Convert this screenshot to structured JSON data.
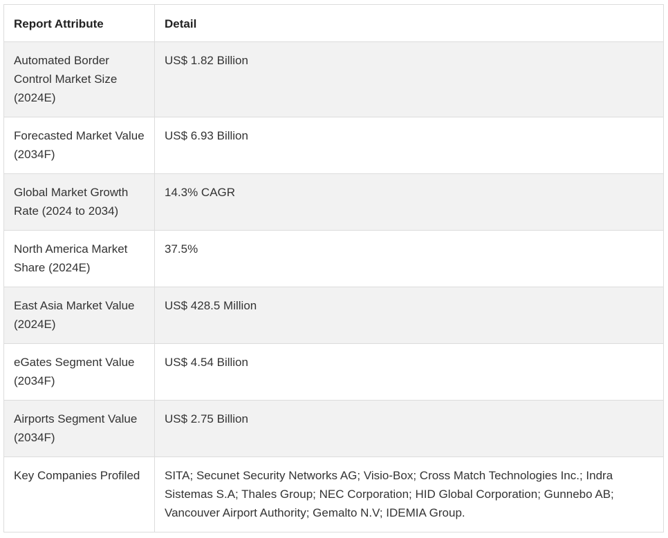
{
  "table": {
    "headers": [
      "Report Attribute",
      "Detail"
    ],
    "rows": [
      {
        "attribute": "Automated Border Control Market Size (2024E)",
        "detail": "US$ 1.82 Billion"
      },
      {
        "attribute": "Forecasted Market Value (2034F)",
        "detail": "US$ 6.93 Billion"
      },
      {
        "attribute": "Global Market Growth Rate (2024 to 2034)",
        "detail": "14.3% CAGR"
      },
      {
        "attribute": "North America Market Share (2024E)",
        "detail": "37.5%"
      },
      {
        "attribute": "East Asia Market Value (2024E)",
        "detail": "US$ 428.5 Million"
      },
      {
        "attribute": "eGates Segment Value (2034F)",
        "detail": "US$ 4.54 Billion"
      },
      {
        "attribute": "Airports Segment Value (2034F)",
        "detail": "US$ 2.75 Billion"
      },
      {
        "attribute": "Key Companies Profiled",
        "detail": "SITA; Secunet Security Networks AG; Visio-Box; Cross Match Technologies Inc.; Indra Sistemas S.A; Thales Group; NEC Corporation; HID Global Corporation; Gunnebo AB; Vancouver Airport Authority; Gemalto N.V; IDEMIA Group."
      }
    ]
  }
}
